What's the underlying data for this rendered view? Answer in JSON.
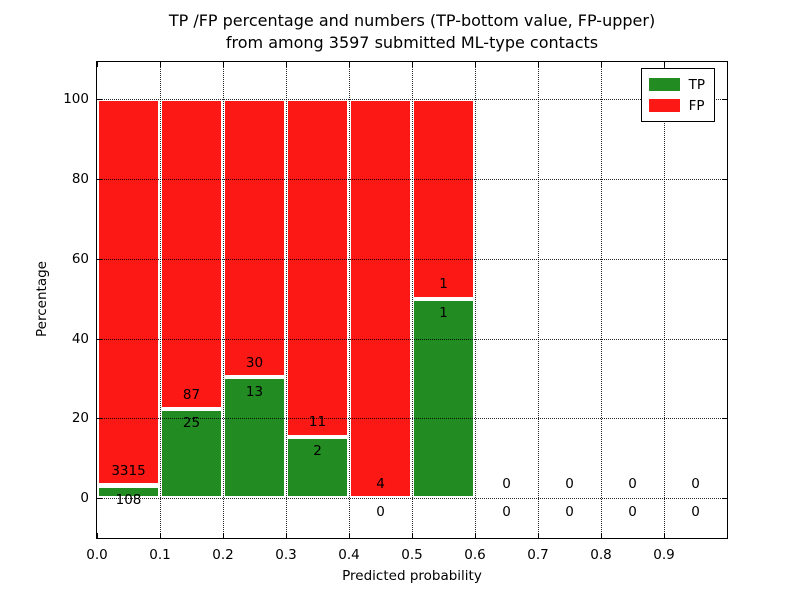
{
  "page": {
    "background": "#ffffff"
  },
  "chart_data": {
    "type": "bar",
    "stacked": true,
    "title_lines": [
      "TP /FP percentage and numbers (TP-bottom value, FP-upper)",
      "from among 3597 submitted ML-type contacts"
    ],
    "xlabel": "Predicted probability",
    "ylabel": "Percentage",
    "total_contacts": 3597,
    "bins_start": [
      0.0,
      0.1,
      0.2,
      0.3,
      0.4,
      0.5,
      0.6,
      0.7,
      0.8,
      0.9
    ],
    "bin_width": 0.1,
    "series": [
      {
        "name": "TP",
        "color": "#228b22",
        "counts": [
          108,
          25,
          13,
          2,
          0,
          1,
          0,
          0,
          0,
          0
        ]
      },
      {
        "name": "FP",
        "color": "#fc1814",
        "counts": [
          3315,
          87,
          30,
          11,
          4,
          1,
          0,
          0,
          0,
          0
        ]
      }
    ],
    "tp_percent_by_bin": [
      3.2,
      22.3,
      30.2,
      15.4,
      0.0,
      50.0,
      0.0,
      0.0,
      0.0,
      0.0
    ],
    "annotation_offset_pct": 3.6,
    "xlim": [
      0.0,
      1.0
    ],
    "ylim": [
      -10.0,
      109.3
    ],
    "xtick_labels": [
      "0.0",
      "0.1",
      "0.2",
      "0.3",
      "0.4",
      "0.5",
      "0.6",
      "0.7",
      "0.8",
      "0.9"
    ],
    "ytick_values": [
      0,
      20,
      40,
      60,
      80,
      100
    ],
    "ytick_labels": [
      "0",
      "20",
      "40",
      "60",
      "80",
      "100"
    ],
    "grid": {
      "style": "dotted",
      "color": "#000000",
      "above_bars": true
    },
    "legend": {
      "position": "upper right",
      "entries": [
        {
          "label": "TP",
          "color": "#228b22"
        },
        {
          "label": "FP",
          "color": "#fc1814"
        }
      ]
    }
  }
}
